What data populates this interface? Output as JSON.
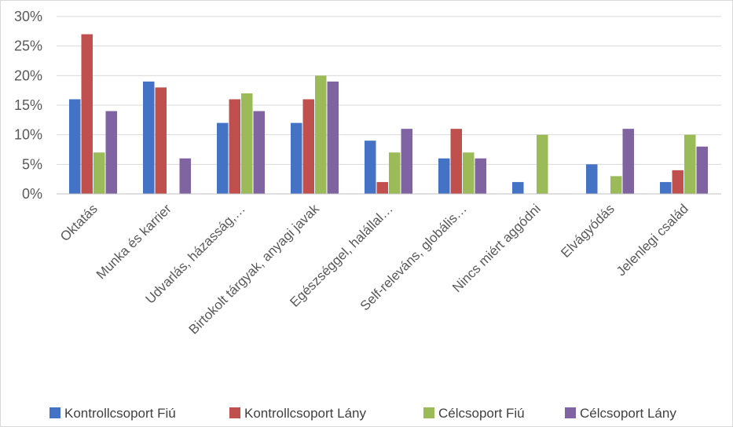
{
  "chart_data": {
    "type": "bar",
    "title": "",
    "xlabel": "",
    "ylabel": "",
    "ylim": [
      0,
      30
    ],
    "yticks": [
      "0%",
      "5%",
      "10%",
      "15%",
      "20%",
      "25%",
      "30%"
    ],
    "grid": true,
    "legend_position": "bottom",
    "categories": [
      "Oktatás",
      "Munka és karrier",
      "Udvarlás, házasság,…",
      "Birtokolt tárgyak, anyagi javak",
      "Egészséggel, halállal…",
      "Self-releváns, globális…",
      "Nincs miért aggódni",
      "Elvágyódás",
      "Jelenlegi család"
    ],
    "series": [
      {
        "name": "Kontrollcsoport Fiú",
        "color": "#4472c4",
        "values": [
          16,
          19,
          12,
          12,
          9,
          6,
          2,
          5,
          2
        ]
      },
      {
        "name": "Kontrollcsoport Lány",
        "color": "#c0504d",
        "values": [
          27,
          18,
          16,
          16,
          2,
          11,
          0,
          0,
          4
        ]
      },
      {
        "name": "Célcsoport Fiú",
        "color": "#9bbb59",
        "values": [
          7,
          0,
          17,
          20,
          7,
          7,
          10,
          3,
          10
        ]
      },
      {
        "name": "Célcsoport Lány",
        "color": "#8064a2",
        "values": [
          14,
          6,
          14,
          19,
          11,
          6,
          0,
          11,
          8
        ]
      }
    ]
  }
}
